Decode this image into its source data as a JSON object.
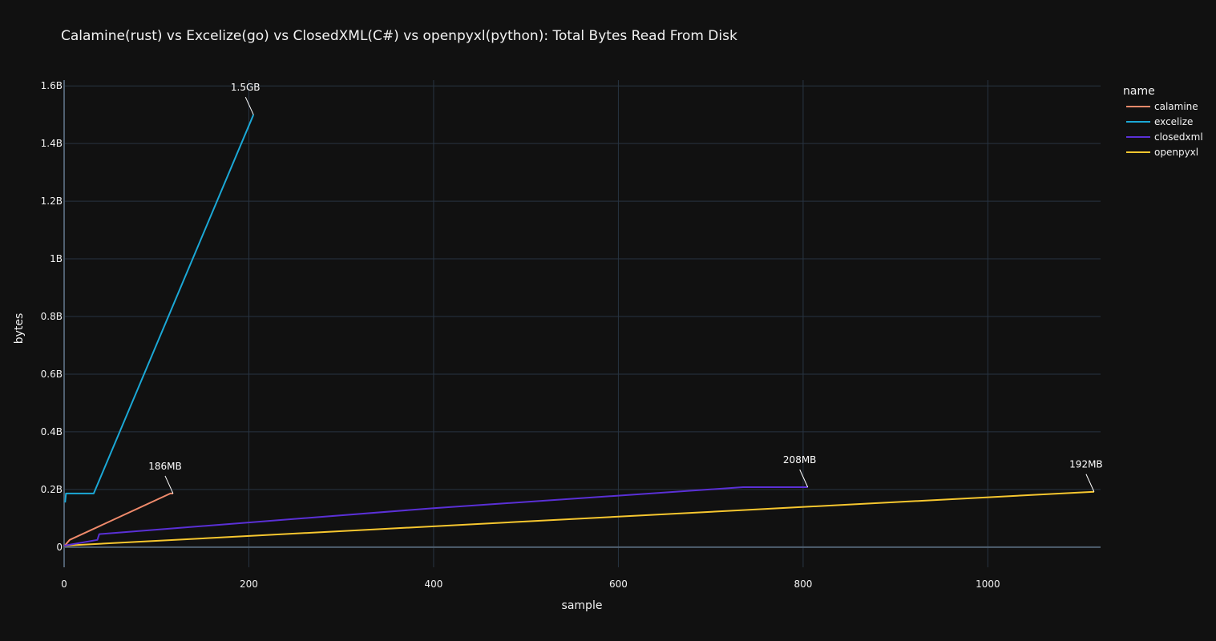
{
  "chart_data": {
    "type": "line",
    "title": "Calamine(rust) vs Excelize(go) vs ClosedXML(C#) vs openpyxl(python): Total Bytes Read From Disk",
    "xlabel": "sample",
    "ylabel": "bytes",
    "xlim": [
      0,
      1122
    ],
    "ylim": [
      -0.07,
      1.62
    ],
    "x_ticks": [
      0,
      200,
      400,
      600,
      800,
      1000
    ],
    "x_tick_labels": [
      "0",
      "200",
      "400",
      "600",
      "800",
      "1000"
    ],
    "y_ticks": [
      0,
      0.2,
      0.4,
      0.6,
      0.8,
      1.0,
      1.2,
      1.4,
      1.6
    ],
    "y_tick_labels": [
      "0",
      "0.2B",
      "0.4B",
      "0.6B",
      "0.8B",
      "1B",
      "1.2B",
      "1.4B",
      "1.6B"
    ],
    "y_unit": "billions of bytes",
    "grid": true,
    "legend": {
      "title": "name",
      "placement": "top-right"
    },
    "series": [
      {
        "name": "calamine",
        "color": "#EF8A6B",
        "x": [
          0,
          2,
          6,
          115,
          118
        ],
        "y": [
          0.003,
          0.01,
          0.025,
          0.186,
          0.186
        ]
      },
      {
        "name": "excelize",
        "color": "#1BA8D6",
        "x": [
          1,
          2,
          32,
          205
        ],
        "y": [
          0.155,
          0.186,
          0.186,
          1.5
        ]
      },
      {
        "name": "closedxml",
        "color": "#5A30D6",
        "x": [
          0,
          36,
          38,
          400,
          735,
          805
        ],
        "y": [
          0.005,
          0.025,
          0.045,
          0.135,
          0.208,
          0.208
        ]
      },
      {
        "name": "openpyxl",
        "color": "#F7C72F",
        "x": [
          0,
          1115
        ],
        "y": [
          0.005,
          0.192
        ]
      }
    ],
    "annotations": [
      {
        "text": "1.5GB",
        "x": 205,
        "y": 1.5
      },
      {
        "text": "186MB",
        "x": 118,
        "y": 0.186
      },
      {
        "text": "208MB",
        "x": 805,
        "y": 0.208
      },
      {
        "text": "192MB",
        "x": 1115,
        "y": 0.192
      }
    ]
  }
}
